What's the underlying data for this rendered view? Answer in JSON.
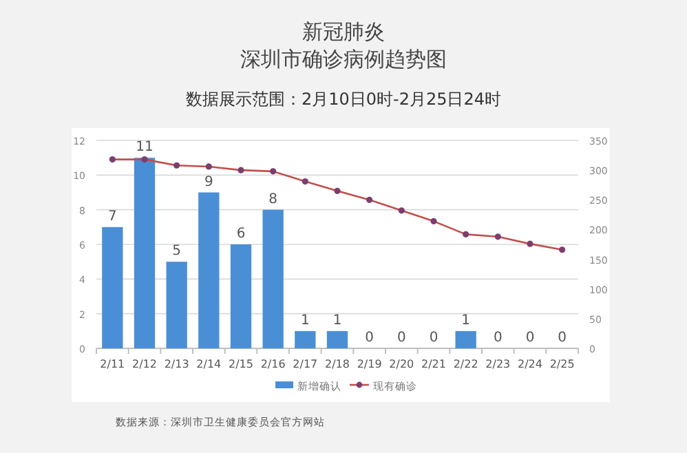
{
  "chart_data": {
    "type": "bar",
    "title": "新冠肺炎",
    "subtitle": "深圳市确诊病例趋势图",
    "categories": [
      "2/11",
      "2/12",
      "2/13",
      "2/14",
      "2/15",
      "2/16",
      "2/17",
      "2/18",
      "2/19",
      "2/20",
      "2/21",
      "2/22",
      "2/23",
      "2/24",
      "2/25"
    ],
    "series": [
      {
        "name": "新增确认",
        "color": "#4a8fd6",
        "values": [
          7,
          11,
          5,
          9,
          6,
          8,
          1,
          1,
          0,
          0,
          0,
          1,
          0,
          0,
          0
        ],
        "value_labels": [
          "7",
          "11",
          "5",
          "9",
          "6",
          "8",
          "1",
          "1",
          "0",
          "0",
          "0",
          "1",
          "0",
          "0",
          "0"
        ]
      },
      {
        "name": "现有确诊",
        "type": "line",
        "axis": "y2",
        "color": "#c0504d",
        "marker": "circle",
        "values": [
          318,
          318,
          308,
          306,
          300,
          298,
          281,
          265,
          250,
          232,
          214,
          192,
          188,
          176,
          166
        ]
      }
    ],
    "ylim": [
      0,
      12
    ],
    "yticks": [
      0,
      2,
      4,
      6,
      8,
      10,
      12
    ],
    "y2lim": [
      0,
      350
    ],
    "y2ticks": [
      0,
      50,
      100,
      150,
      200,
      250,
      300,
      350
    ],
    "grid": "y",
    "legend": "bottom",
    "annotations": [
      "数据展示范围：2月10日0时-2月25日24时",
      "数据来源：深圳市卫生健康委员会官方网站"
    ]
  }
}
